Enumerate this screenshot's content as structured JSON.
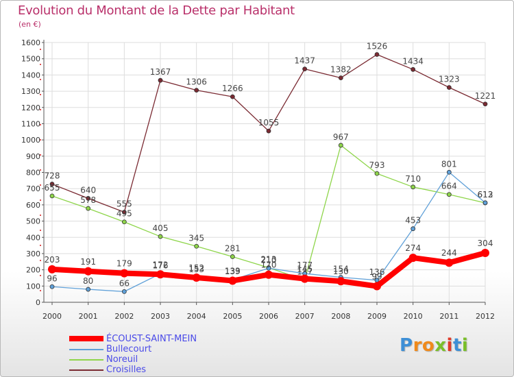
{
  "header": {
    "title": "Evolution du Montant de la Dette par Habitant",
    "subtitle": "(en €)"
  },
  "logo": {
    "letters": [
      "P",
      "r",
      "o",
      "x",
      "i",
      "t",
      "i"
    ],
    "colors": [
      "#3d8fd6",
      "#f08a1c",
      "#f08a1c",
      "#7abf2a",
      "#e03a2a",
      "#3d8fd6",
      "#7abf2a"
    ]
  },
  "chart_data": {
    "type": "line",
    "title": "Evolution du Montant de la Dette par Habitant",
    "ylabel": "(en €)",
    "xlabel": "",
    "x": [
      "2000",
      "2001",
      "2002",
      "2003",
      "2004",
      "2005",
      "2006",
      "2007",
      "2008",
      "2009",
      "2010",
      "2011",
      "2012"
    ],
    "ylim": [
      0,
      1600
    ],
    "yticks": [
      0,
      100,
      200,
      300,
      400,
      500,
      600,
      700,
      800,
      900,
      1000,
      1100,
      1200,
      1300,
      1400,
      1500,
      1600
    ],
    "grid": true,
    "legend_position": "bottom-left",
    "series": [
      {
        "name": "Croisilles",
        "color": "#7a2a32",
        "values": [
          728,
          640,
          555,
          1367,
          1306,
          1266,
          1055,
          1437,
          1382,
          1526,
          1434,
          1323,
          1221
        ],
        "labels": [
          "728",
          "640",
          "555",
          "1367",
          "1306",
          "1266",
          "1055",
          "1437",
          "1382",
          "1526",
          "1434",
          "1323",
          "1221"
        ]
      },
      {
        "name": "Noreuil",
        "color": "#8ed54a",
        "values": [
          655,
          578,
          495,
          405,
          345,
          281,
          213,
          137,
          967,
          793,
          710,
          664,
          612
        ],
        "labels": [
          "655",
          "578",
          "495",
          "405",
          "345",
          "281",
          "213",
          "137",
          "967",
          "793",
          "710",
          "664",
          "612"
        ]
      },
      {
        "name": "Bullecourt",
        "color": "#5fa0d8",
        "values": [
          96,
          80,
          66,
          176,
          153,
          139,
          210,
          177,
          154,
          136,
          453,
          801,
          613
        ],
        "labels": [
          "96",
          "80",
          "66",
          "176",
          "153",
          "139",
          "210",
          "177",
          "154",
          "136",
          "453",
          "801",
          "613"
        ]
      },
      {
        "name": "ÉCOUST-SAINT-MEIN",
        "color": "#ff0000",
        "values": [
          203,
          191,
          179,
          172,
          152,
          133,
          170,
          145,
          130,
          99,
          274,
          244,
          304
        ],
        "labels": [
          "203",
          "191",
          "179",
          "172",
          "152",
          "133",
          "170",
          "145",
          "130",
          "99",
          "274",
          "244",
          "304"
        ]
      }
    ],
    "legend_order": [
      "ÉCOUST-SAINT-MEIN",
      "Bullecourt",
      "Noreuil",
      "Croisilles"
    ]
  }
}
